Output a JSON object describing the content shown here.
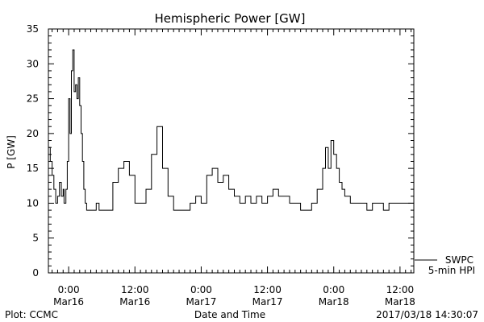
{
  "colors": {
    "line": "#000000",
    "frame": "#000000",
    "background": "#ffffff"
  },
  "footer": {
    "left": "Plot: CCMC",
    "center": "Date and Time",
    "right": "2017/03/18 14:30:07"
  },
  "legend": {
    "line1": "SWPC",
    "line2": "5-min HPI",
    "placement": "bottom-right outside plot"
  },
  "chart_data": {
    "type": "line",
    "title": "Hemispheric Power [GW]",
    "xlabel": "Date and Time",
    "ylabel": "P [GW]",
    "ylim": [
      0,
      35
    ],
    "yticks": [
      0,
      5,
      10,
      15,
      20,
      25,
      30,
      35
    ],
    "xlim": [
      "2017-03-15T20:20",
      "2017-03-18T14:30"
    ],
    "xticks": [
      {
        "time": "2017-03-16T00:00",
        "label1": "0:00",
        "label2": "Mar16"
      },
      {
        "time": "2017-03-16T12:00",
        "label1": "12:00",
        "label2": "Mar16"
      },
      {
        "time": "2017-03-17T00:00",
        "label1": "0:00",
        "label2": "Mar17"
      },
      {
        "time": "2017-03-17T12:00",
        "label1": "12:00",
        "label2": "Mar17"
      },
      {
        "time": "2017-03-18T00:00",
        "label1": "0:00",
        "label2": "Mar18"
      },
      {
        "time": "2017-03-18T12:00",
        "label1": "12:00",
        "label2": "Mar18"
      }
    ],
    "grid": false,
    "series": [
      {
        "name": "SWPC 5-min HPI",
        "x": [
          "2017-03-15T20:20",
          "2017-03-15T20:40",
          "2017-03-15T21:00",
          "2017-03-15T21:20",
          "2017-03-15T21:40",
          "2017-03-15T22:00",
          "2017-03-15T22:20",
          "2017-03-15T22:40",
          "2017-03-15T23:00",
          "2017-03-15T23:10",
          "2017-03-15T23:30",
          "2017-03-15T23:45",
          "2017-03-16T00:00",
          "2017-03-16T00:15",
          "2017-03-16T00:30",
          "2017-03-16T00:45",
          "2017-03-16T01:00",
          "2017-03-16T01:15",
          "2017-03-16T01:30",
          "2017-03-16T01:45",
          "2017-03-16T02:00",
          "2017-03-16T02:15",
          "2017-03-16T02:30",
          "2017-03-16T02:45",
          "2017-03-16T03:00",
          "2017-03-16T03:15",
          "2017-03-16T03:30",
          "2017-03-16T03:45",
          "2017-03-16T04:00",
          "2017-03-16T04:20",
          "2017-03-16T04:40",
          "2017-03-16T05:00",
          "2017-03-16T05:30",
          "2017-03-16T06:00",
          "2017-03-16T07:00",
          "2017-03-16T08:00",
          "2017-03-16T09:00",
          "2017-03-16T10:00",
          "2017-03-16T11:00",
          "2017-03-16T12:00",
          "2017-03-16T13:00",
          "2017-03-16T14:00",
          "2017-03-16T15:00",
          "2017-03-16T16:00",
          "2017-03-16T17:00",
          "2017-03-16T18:00",
          "2017-03-16T19:00",
          "2017-03-16T20:00",
          "2017-03-16T21:00",
          "2017-03-16T22:00",
          "2017-03-16T23:00",
          "2017-03-17T00:00",
          "2017-03-17T01:00",
          "2017-03-17T02:00",
          "2017-03-17T03:00",
          "2017-03-17T04:00",
          "2017-03-17T05:00",
          "2017-03-17T06:00",
          "2017-03-17T07:00",
          "2017-03-17T08:00",
          "2017-03-17T09:00",
          "2017-03-17T10:00",
          "2017-03-17T11:00",
          "2017-03-17T12:00",
          "2017-03-17T13:00",
          "2017-03-17T14:00",
          "2017-03-17T15:00",
          "2017-03-17T16:00",
          "2017-03-17T17:00",
          "2017-03-17T18:00",
          "2017-03-17T19:00",
          "2017-03-17T20:00",
          "2017-03-17T21:00",
          "2017-03-17T22:00",
          "2017-03-17T22:30",
          "2017-03-17T23:00",
          "2017-03-17T23:30",
          "2017-03-18T00:00",
          "2017-03-18T00:30",
          "2017-03-18T01:00",
          "2017-03-18T01:30",
          "2017-03-18T02:00",
          "2017-03-18T03:00",
          "2017-03-18T04:00",
          "2017-03-18T05:00",
          "2017-03-18T06:00",
          "2017-03-18T07:00",
          "2017-03-18T08:00",
          "2017-03-18T09:00",
          "2017-03-18T10:00",
          "2017-03-18T11:00",
          "2017-03-18T12:00",
          "2017-03-18T13:00",
          "2017-03-18T14:00",
          "2017-03-18T14:30"
        ],
        "y": [
          18,
          16,
          14,
          12,
          10,
          11,
          13,
          11,
          12,
          10,
          12,
          16,
          25,
          20,
          29,
          32,
          26,
          27,
          25,
          28,
          24,
          20,
          16,
          12,
          10,
          9,
          9,
          9,
          9,
          9,
          9,
          10,
          9,
          9,
          9,
          13,
          15,
          16,
          14,
          10,
          10,
          12,
          17,
          21,
          15,
          11,
          9,
          9,
          9,
          10,
          11,
          10,
          14,
          15,
          13,
          14,
          12,
          11,
          10,
          11,
          10,
          11,
          10,
          11,
          12,
          11,
          11,
          10,
          10,
          9,
          9,
          10,
          12,
          15,
          18,
          15,
          19,
          17,
          15,
          13,
          12,
          11,
          10,
          10,
          10,
          9,
          10,
          10,
          9,
          10,
          10,
          10,
          10,
          10,
          10
        ]
      }
    ]
  }
}
